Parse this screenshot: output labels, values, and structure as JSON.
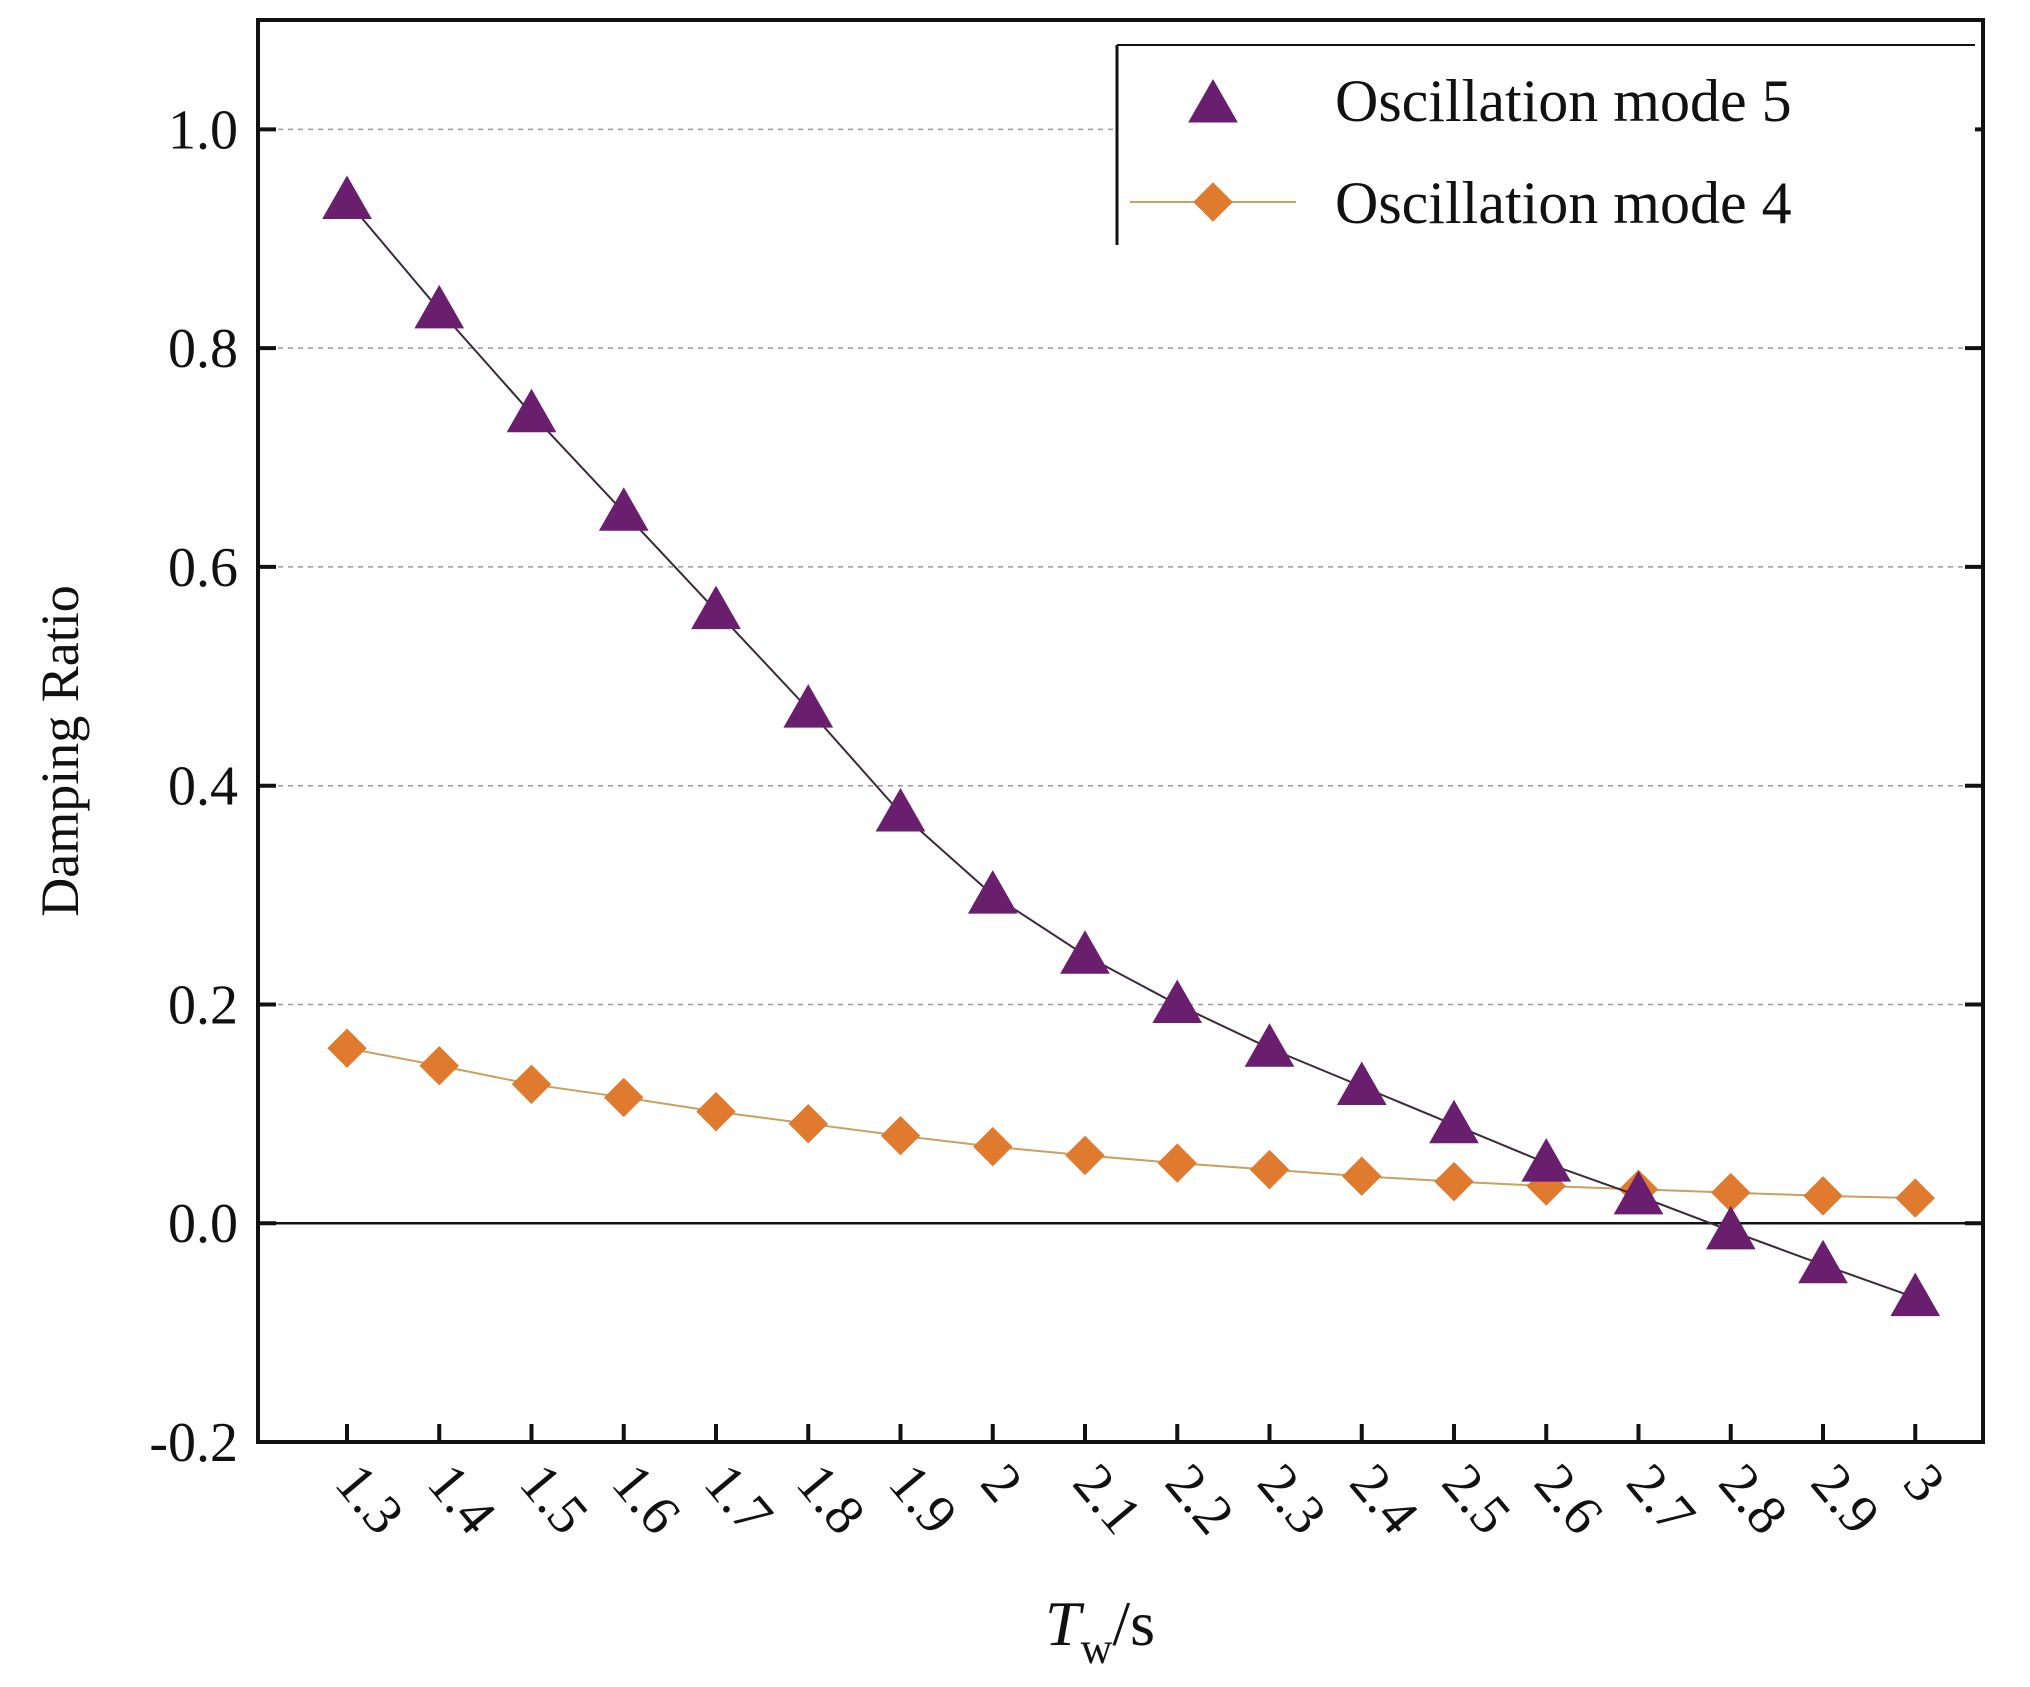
{
  "chart_data": {
    "type": "line",
    "title": "",
    "xlabel": "T_w/s",
    "xlabel_main": "T",
    "xlabel_sub": "w",
    "xlabel_unit": "/s",
    "ylabel": "Damping Ratio",
    "ylim": [
      -0.2,
      1.1
    ],
    "y_ticks": [
      -0.2,
      0.0,
      0.2,
      0.4,
      0.6,
      0.8,
      1.0
    ],
    "y_tick_labels": [
      "-0.2",
      "0.0",
      "0.2",
      "0.4",
      "0.6",
      "0.8",
      "1.0"
    ],
    "grid": "dashed horizontal at 0.2, 0.4, 0.6, 0.8, 1.0",
    "zero_line": true,
    "legend_position": "top-right",
    "categories": [
      "1.3",
      "1.4",
      "1.5",
      "1.6",
      "1.7",
      "1.8",
      "1.9",
      "2",
      "2.1",
      "2.2",
      "2.3",
      "2.4",
      "2.5",
      "2.6",
      "2.7",
      "2.8",
      "2.9",
      "3"
    ],
    "series": [
      {
        "name": "Oscillation mode 5",
        "marker": "triangle",
        "color": "#6a1f6e",
        "line_color": "#3a2a3a",
        "values": [
          0.935,
          0.835,
          0.74,
          0.65,
          0.56,
          0.47,
          0.375,
          0.3,
          0.245,
          0.2,
          0.16,
          0.125,
          0.09,
          0.055,
          0.025,
          -0.007,
          -0.038,
          -0.068
        ]
      },
      {
        "name": "Oscillation mode 4",
        "marker": "diamond",
        "color": "#e07a2e",
        "line_color": "#c8a060",
        "values": [
          0.16,
          0.144,
          0.127,
          0.115,
          0.102,
          0.091,
          0.08,
          0.07,
          0.062,
          0.055,
          0.049,
          0.043,
          0.038,
          0.034,
          0.031,
          0.028,
          0.025,
          0.023
        ]
      }
    ]
  }
}
